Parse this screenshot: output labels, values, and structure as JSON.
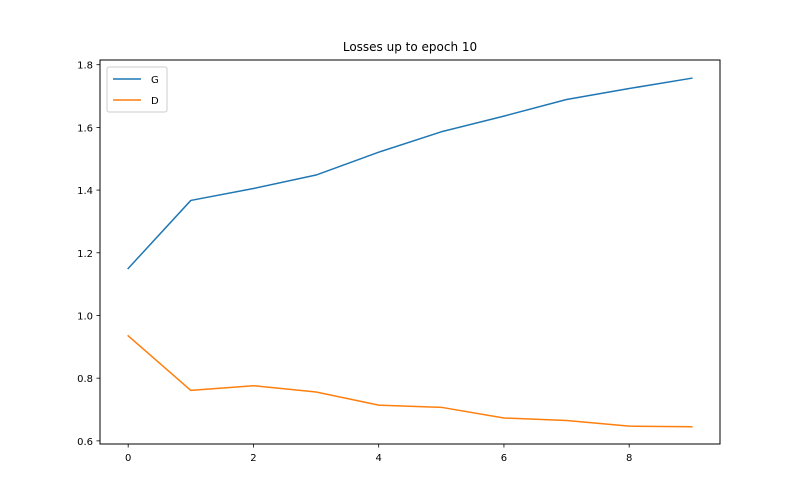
{
  "chart_data": {
    "type": "line",
    "title": "Losses up to epoch 10",
    "xlabel": "",
    "ylabel": "",
    "x": [
      0,
      1,
      2,
      3,
      4,
      5,
      6,
      7,
      8,
      9
    ],
    "xlim": [
      -0.45,
      9.45
    ],
    "ylim": [
      0.59,
      1.815
    ],
    "xticks": [
      0,
      2,
      4,
      6,
      8
    ],
    "yticks": [
      0.6,
      0.8,
      1.0,
      1.2,
      1.4,
      1.6,
      1.8
    ],
    "ytick_labels": [
      "0.6",
      "0.8",
      "1.0",
      "1.2",
      "1.4",
      "1.6",
      "1.8"
    ],
    "grid": false,
    "legend_position": "top-left",
    "series": [
      {
        "name": "G",
        "color": "#1f77b4",
        "values": [
          1.15,
          1.367,
          1.405,
          1.448,
          1.521,
          1.586,
          1.636,
          1.689,
          1.724,
          1.757
        ]
      },
      {
        "name": "D",
        "color": "#ff7f0e",
        "values": [
          0.935,
          0.761,
          0.776,
          0.756,
          0.714,
          0.707,
          0.673,
          0.665,
          0.647,
          0.645
        ]
      }
    ]
  }
}
